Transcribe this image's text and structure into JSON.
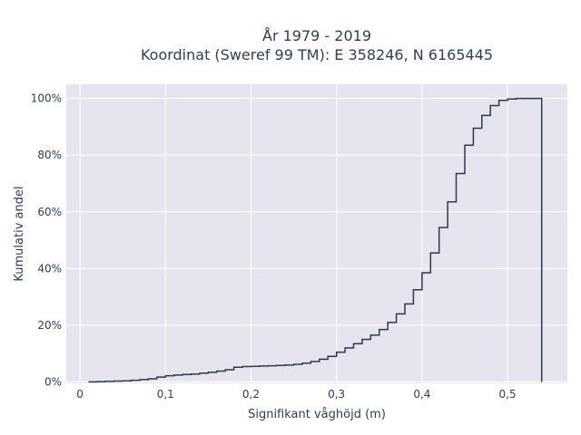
{
  "chart_data": {
    "type": "line",
    "line_shape": "step",
    "title_line1": "År 1979 - 2019",
    "title_line2": "Koordinat (Sweref 99 TM): E 358246, N 6165445",
    "xlabel": "Signifikant våghöjd (m)",
    "ylabel": "Kumulativ andel",
    "xlim": [
      -0.016,
      0.57
    ],
    "ylim": [
      -0.005,
      1.05
    ],
    "grid": true,
    "line_color": "#2e3a4a",
    "plot_background": "#e5e5ef",
    "x_ticks": [
      {
        "value": 0,
        "label": "0"
      },
      {
        "value": 0.1,
        "label": "0,1"
      },
      {
        "value": 0.2,
        "label": "0,2"
      },
      {
        "value": 0.3,
        "label": "0,3"
      },
      {
        "value": 0.4,
        "label": "0,4"
      },
      {
        "value": 0.5,
        "label": "0,5"
      }
    ],
    "y_ticks": [
      {
        "value": 0,
        "label": "0%"
      },
      {
        "value": 0.2,
        "label": "20%"
      },
      {
        "value": 0.4,
        "label": "40%"
      },
      {
        "value": 0.6,
        "label": "60%"
      },
      {
        "value": 0.8,
        "label": "80%"
      },
      {
        "value": 1.0,
        "label": "100%"
      }
    ],
    "x": [
      0.01,
      0.02,
      0.03,
      0.04,
      0.05,
      0.06,
      0.07,
      0.08,
      0.09,
      0.1,
      0.11,
      0.12,
      0.13,
      0.14,
      0.15,
      0.16,
      0.17,
      0.18,
      0.19,
      0.2,
      0.21,
      0.22,
      0.23,
      0.24,
      0.25,
      0.26,
      0.27,
      0.28,
      0.29,
      0.3,
      0.31,
      0.32,
      0.33,
      0.34,
      0.35,
      0.36,
      0.37,
      0.38,
      0.39,
      0.4,
      0.41,
      0.42,
      0.43,
      0.44,
      0.45,
      0.46,
      0.47,
      0.48,
      0.49,
      0.5,
      0.51,
      0.52,
      0.53,
      0.54
    ],
    "y": [
      0.0,
      0.001,
      0.002,
      0.003,
      0.004,
      0.006,
      0.008,
      0.011,
      0.017,
      0.022,
      0.024,
      0.026,
      0.028,
      0.031,
      0.034,
      0.038,
      0.043,
      0.052,
      0.054,
      0.055,
      0.056,
      0.057,
      0.058,
      0.06,
      0.062,
      0.066,
      0.072,
      0.08,
      0.09,
      0.105,
      0.12,
      0.135,
      0.15,
      0.165,
      0.185,
      0.21,
      0.24,
      0.275,
      0.325,
      0.385,
      0.455,
      0.545,
      0.635,
      0.735,
      0.835,
      0.895,
      0.94,
      0.975,
      0.993,
      0.998,
      1.0,
      1.0,
      1.0,
      0.0
    ]
  }
}
